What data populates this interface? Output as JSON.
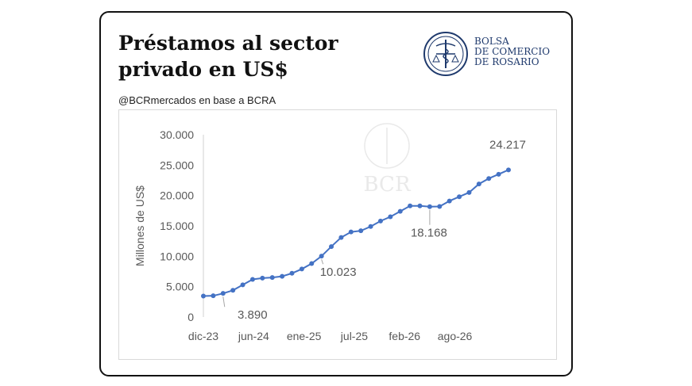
{
  "header": {
    "title": "Préstamos al sector privado en US$",
    "logo_lines": [
      "BOLSA",
      "DE COMERCIO",
      "DE ROSARIO"
    ],
    "source": "@BCRmercados en base a BCRA",
    "watermark": "BCR"
  },
  "colors": {
    "series": "#4472c4",
    "axis_text": "#595959",
    "brand": "#1f3a6d"
  },
  "chart_data": {
    "type": "line",
    "title": "",
    "xlabel": "",
    "ylabel": "Millones de US$",
    "ylim": [
      0,
      30000
    ],
    "yticks": [
      0,
      5000,
      10000,
      15000,
      20000,
      25000,
      30000
    ],
    "ytick_labels": [
      "0",
      "5.000",
      "10.000",
      "15.000",
      "20.000",
      "25.000",
      "30.000"
    ],
    "xticks": [
      "dic-23",
      "jun-24",
      "ene-25",
      "jul-25",
      "feb-26",
      "ago-26"
    ],
    "grid": false,
    "legend": "none",
    "series": [
      {
        "values": [
          3450,
          3500,
          3890,
          4400,
          5300,
          6200,
          6400,
          6500,
          6700,
          7200,
          7900,
          8800,
          10023,
          11600,
          13100,
          14000,
          14200,
          14900,
          15800,
          16500,
          17400,
          18300,
          18300,
          18168,
          18200,
          19100,
          19800,
          20500,
          21900,
          22800,
          23500,
          24217
        ]
      }
    ],
    "annotations": [
      {
        "index": 2,
        "label": "3.890"
      },
      {
        "index": 12,
        "label": "10.023"
      },
      {
        "index": 23,
        "label": "18.168"
      },
      {
        "index": 31,
        "label": "24.217"
      }
    ]
  }
}
